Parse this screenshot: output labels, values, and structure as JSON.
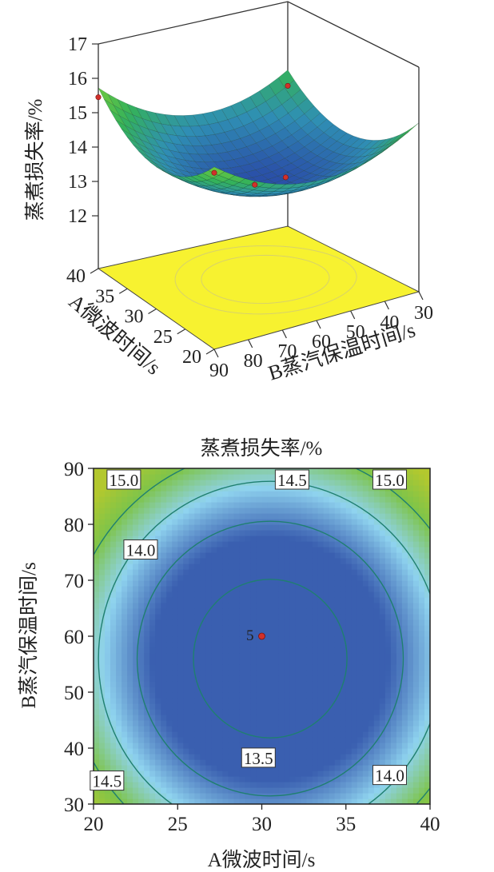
{
  "chart_data": [
    {
      "type": "surface3d",
      "zlabel": "蒸煮损失率/%",
      "x_axis": {
        "label": "A微波时间/s",
        "ticks": [
          "40",
          "35",
          "30",
          "25",
          "20"
        ],
        "range": [
          20,
          40
        ]
      },
      "y_axis": {
        "label": "B蒸汽保温时间/s",
        "ticks": [
          "90",
          "80",
          "70",
          "60",
          "50",
          "40",
          "30"
        ],
        "range": [
          30,
          90
        ]
      },
      "z_axis": {
        "ticks": [
          "17",
          "16",
          "15",
          "14",
          "13",
          "12"
        ],
        "range": [
          12,
          17
        ]
      },
      "surface": {
        "min_x": 30.5,
        "min_y": 56,
        "min_z": 13.25,
        "colors": [
          "#2a4fa8",
          "#2f8fb4",
          "#34b25a",
          "#7bcf3a"
        ]
      },
      "floor_color": "#f7f230",
      "design_points": [
        {
          "x": 20,
          "y": 90,
          "z": 15.6
        },
        {
          "x": 40,
          "y": 90,
          "z": 15.45
        },
        {
          "x": 40,
          "y": 30,
          "z": 14.55
        },
        {
          "x": 25,
          "y": 60,
          "z": 14.1
        },
        {
          "x": 30,
          "y": 60,
          "z": 13.35
        }
      ]
    },
    {
      "type": "contour",
      "title": "蒸煮损失率/%",
      "xlabel": "A微波时间/s",
      "ylabel": "B蒸汽保温时间/s",
      "xlim": [
        20,
        40
      ],
      "ylim": [
        30,
        90
      ],
      "x_ticks": [
        "20",
        "25",
        "30",
        "35",
        "40"
      ],
      "y_ticks": [
        "30",
        "40",
        "50",
        "60",
        "70",
        "80",
        "90"
      ],
      "center": {
        "x": 30.5,
        "y": 56,
        "value": 13.25
      },
      "contour_levels": [
        13.5,
        14.0,
        14.5,
        15.0
      ],
      "contour_labels": [
        {
          "text": "15.0",
          "x": 21.8,
          "y": 88.0
        },
        {
          "text": "14.5",
          "x": 31.8,
          "y": 88.0
        },
        {
          "text": "15.0",
          "x": 37.6,
          "y": 88.0
        },
        {
          "text": "14.0",
          "x": 22.8,
          "y": 75.5
        },
        {
          "text": "13.5",
          "x": 29.8,
          "y": 38.3
        },
        {
          "text": "14.0",
          "x": 37.6,
          "y": 35.2
        },
        {
          "text": "14.5",
          "x": 20.8,
          "y": 34.2
        }
      ],
      "design_point": {
        "x": 30,
        "y": 60,
        "label": "5"
      },
      "colors": {
        "low": "#3a5fb0",
        "mid": "#8fd3ef",
        "high": "#7ec44a",
        "line": "#1f7f70",
        "point": "#d1312a"
      }
    }
  ]
}
